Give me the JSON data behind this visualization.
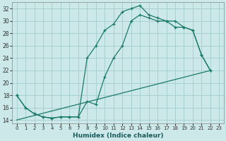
{
  "background_color": "#cce8e8",
  "grid_color": "#a8d0d0",
  "line_color": "#1a7a6a",
  "xlabel": "Humidex (Indice chaleur)",
  "xlim": [
    -0.5,
    23.5
  ],
  "ylim": [
    13.5,
    33.0
  ],
  "yticks": [
    14,
    16,
    18,
    20,
    22,
    24,
    26,
    28,
    30,
    32
  ],
  "xticks": [
    0,
    1,
    2,
    3,
    4,
    5,
    6,
    7,
    8,
    9,
    10,
    11,
    12,
    13,
    14,
    15,
    16,
    17,
    18,
    19,
    20,
    21,
    22,
    23
  ],
  "curve1_x": [
    0,
    1,
    2,
    3,
    4,
    5,
    6,
    7,
    8,
    9,
    10,
    11,
    12,
    13,
    14,
    15,
    16,
    17,
    18,
    19,
    20,
    21,
    22
  ],
  "curve1_y": [
    18,
    16,
    15,
    14.5,
    14.3,
    14.5,
    14.5,
    14.5,
    24,
    26,
    28.5,
    29.5,
    31.5,
    32,
    32.5,
    31,
    30.5,
    30,
    30,
    29,
    28.5,
    24.5,
    22
  ],
  "curve2_x": [
    0,
    1,
    2,
    3,
    4,
    5,
    6,
    7,
    8,
    9,
    10,
    11,
    12,
    13,
    14,
    15,
    16,
    17,
    18,
    19,
    20,
    21,
    22
  ],
  "curve2_y": [
    18,
    16,
    15,
    14.5,
    14.3,
    14.5,
    14.5,
    14.5,
    17,
    16.5,
    21,
    24,
    26,
    30,
    31,
    30.5,
    30,
    30,
    29,
    29,
    28.5,
    24.5,
    22
  ],
  "curve3_x": [
    0,
    22
  ],
  "curve3_y": [
    14,
    22
  ]
}
